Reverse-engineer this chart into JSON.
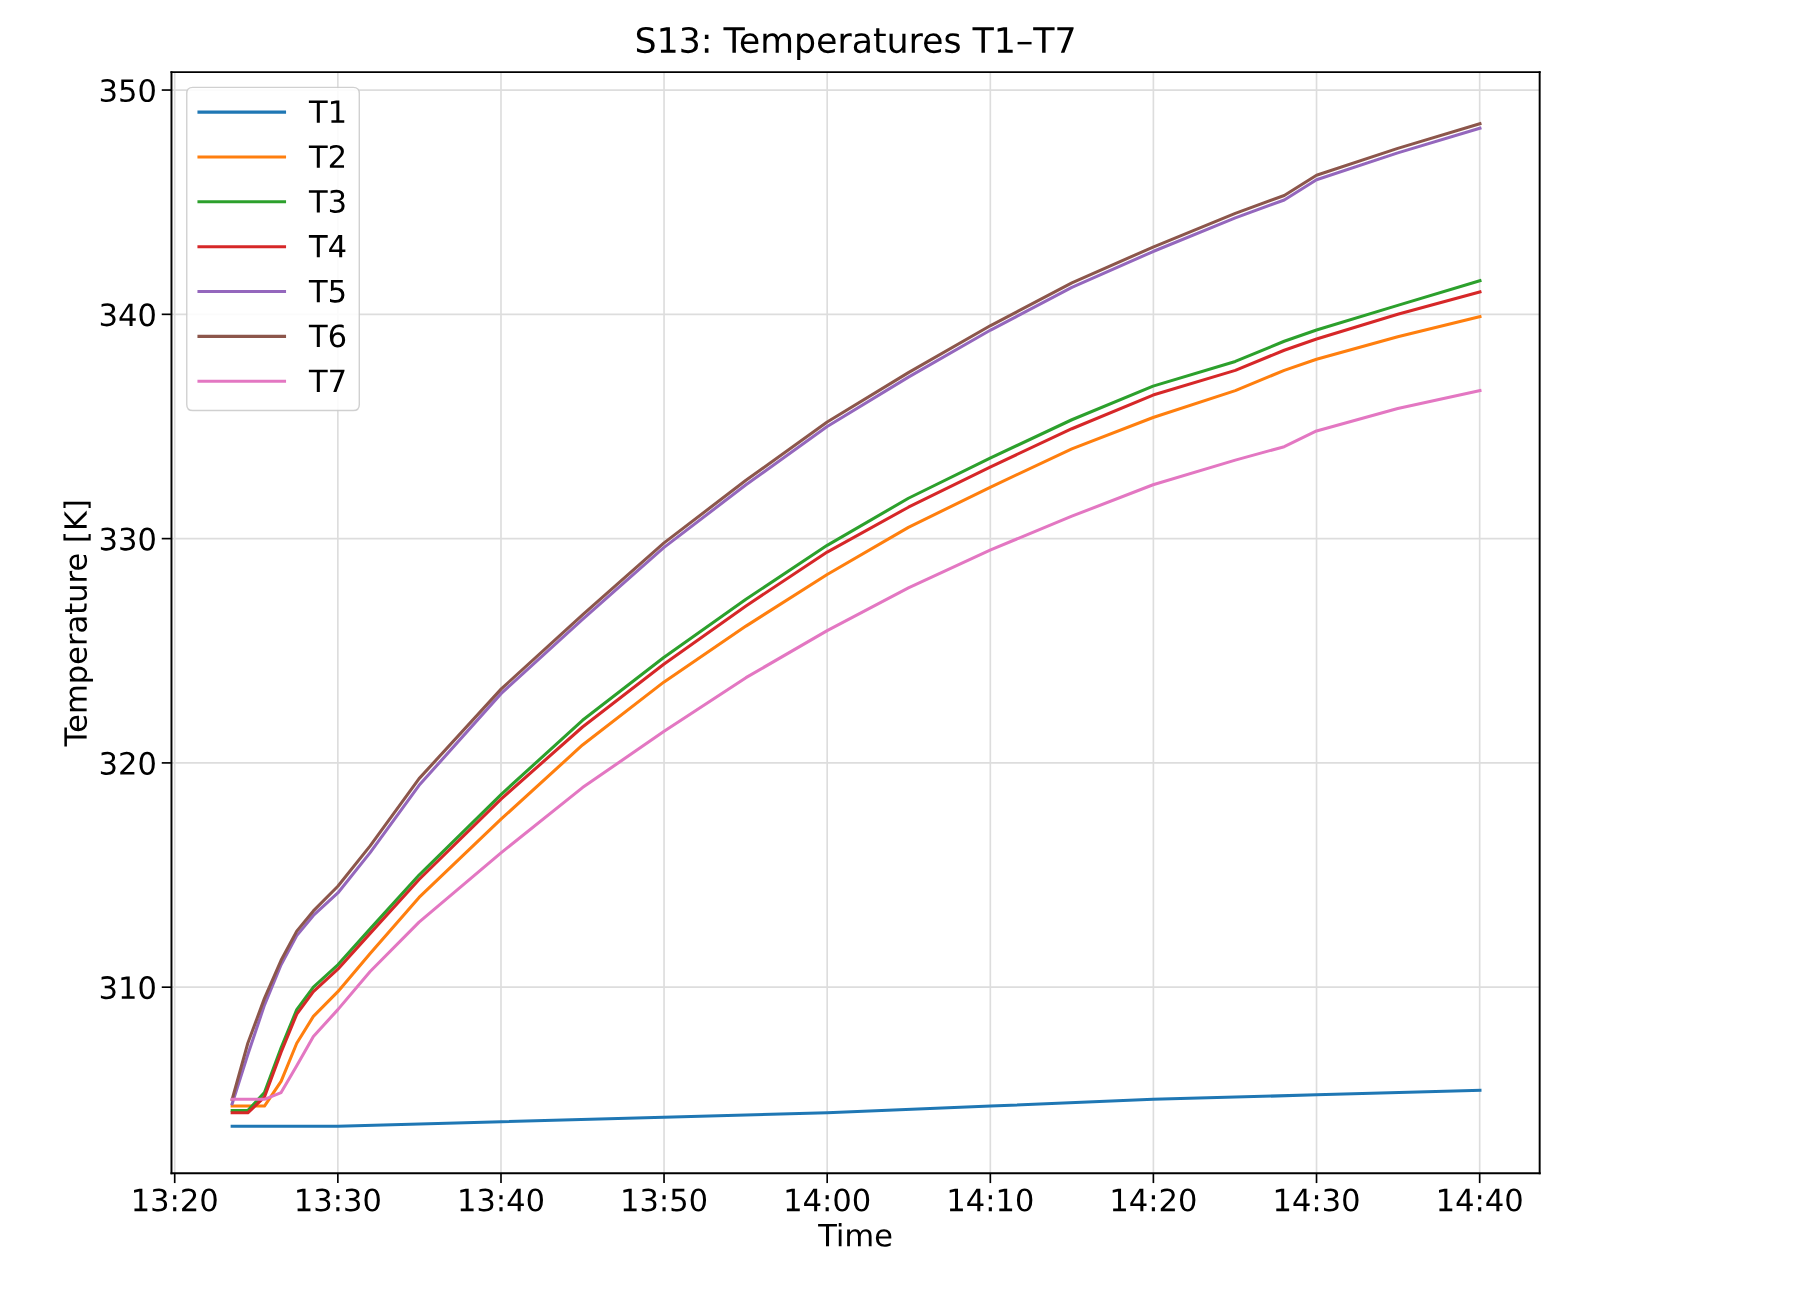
{
  "chart_data": {
    "type": "line",
    "title": "S13: Temperatures T1–T7",
    "xlabel": "Time",
    "ylabel": "Temperature [K]",
    "x": [
      13.392,
      13.408,
      13.425,
      13.442,
      13.458,
      13.475,
      13.5,
      13.533,
      13.583,
      13.667,
      13.75,
      13.833,
      13.917,
      14.0,
      14.083,
      14.167,
      14.25,
      14.333,
      14.417,
      14.467,
      14.5,
      14.583,
      14.667
    ],
    "series": [
      {
        "name": "T1",
        "color": "#1f77b4",
        "x": [
          13.392,
          13.5,
          13.667,
          13.833,
          14.0,
          14.167,
          14.333,
          14.5,
          14.667
        ],
        "values": [
          303.8,
          303.8,
          304.0,
          304.2,
          304.4,
          304.7,
          305.0,
          305.2,
          305.4
        ]
      },
      {
        "name": "T2",
        "color": "#ff7f0e",
        "values": [
          304.7,
          304.7,
          304.7,
          305.8,
          307.5,
          308.7,
          309.8,
          311.5,
          314.0,
          317.5,
          320.8,
          323.6,
          326.1,
          328.4,
          330.5,
          332.3,
          334.0,
          335.4,
          336.6,
          337.5,
          338.0,
          339.0,
          339.9
        ]
      },
      {
        "name": "T3",
        "color": "#2ca02c",
        "values": [
          304.5,
          304.5,
          305.3,
          307.3,
          309.0,
          310.0,
          311.0,
          312.6,
          315.0,
          318.6,
          321.9,
          324.7,
          327.3,
          329.7,
          331.8,
          333.6,
          335.3,
          336.8,
          337.9,
          338.8,
          339.3,
          340.4,
          341.5
        ]
      },
      {
        "name": "T4",
        "color": "#d62728",
        "values": [
          304.4,
          304.4,
          305.1,
          307.1,
          308.8,
          309.8,
          310.8,
          312.4,
          314.8,
          318.4,
          321.6,
          324.4,
          327.0,
          329.4,
          331.4,
          333.2,
          334.9,
          336.4,
          337.5,
          338.4,
          338.9,
          340.0,
          341.0
        ]
      },
      {
        "name": "T5",
        "color": "#9467bd",
        "values": [
          304.8,
          307.0,
          309.2,
          311.0,
          312.3,
          313.2,
          314.2,
          316.0,
          319.0,
          323.1,
          326.4,
          329.6,
          332.4,
          335.0,
          337.2,
          339.3,
          341.2,
          342.8,
          344.3,
          345.1,
          346.0,
          347.2,
          348.3
        ]
      },
      {
        "name": "T6",
        "color": "#8c564b",
        "values": [
          305.0,
          307.5,
          309.5,
          311.2,
          312.5,
          313.4,
          314.5,
          316.3,
          319.3,
          323.3,
          326.6,
          329.8,
          332.6,
          335.2,
          337.4,
          339.5,
          341.4,
          343.0,
          344.5,
          345.3,
          346.2,
          347.4,
          348.5
        ]
      },
      {
        "name": "T7",
        "color": "#e377c2",
        "values": [
          305.0,
          305.0,
          305.0,
          305.3,
          306.5,
          307.8,
          309.0,
          310.7,
          312.9,
          316.0,
          318.9,
          321.4,
          323.8,
          325.9,
          327.8,
          329.5,
          331.0,
          332.4,
          333.5,
          334.1,
          334.8,
          335.8,
          336.6
        ]
      }
    ],
    "xlim": [
      13.33,
      14.728
    ],
    "ylim": [
      301.7,
      350.8
    ],
    "xticks": [
      {
        "value": 13.3333,
        "label": "13:20"
      },
      {
        "value": 13.5,
        "label": "13:30"
      },
      {
        "value": 13.6667,
        "label": "13:40"
      },
      {
        "value": 13.8333,
        "label": "13:50"
      },
      {
        "value": 14.0,
        "label": "14:00"
      },
      {
        "value": 14.1667,
        "label": "14:10"
      },
      {
        "value": 14.3333,
        "label": "14:20"
      },
      {
        "value": 14.5,
        "label": "14:30"
      },
      {
        "value": 14.6667,
        "label": "14:40"
      }
    ],
    "yticks": [
      310,
      320,
      330,
      340,
      350
    ],
    "grid": true,
    "legend": "top left",
    "marker": "none",
    "line_style": "solid"
  }
}
